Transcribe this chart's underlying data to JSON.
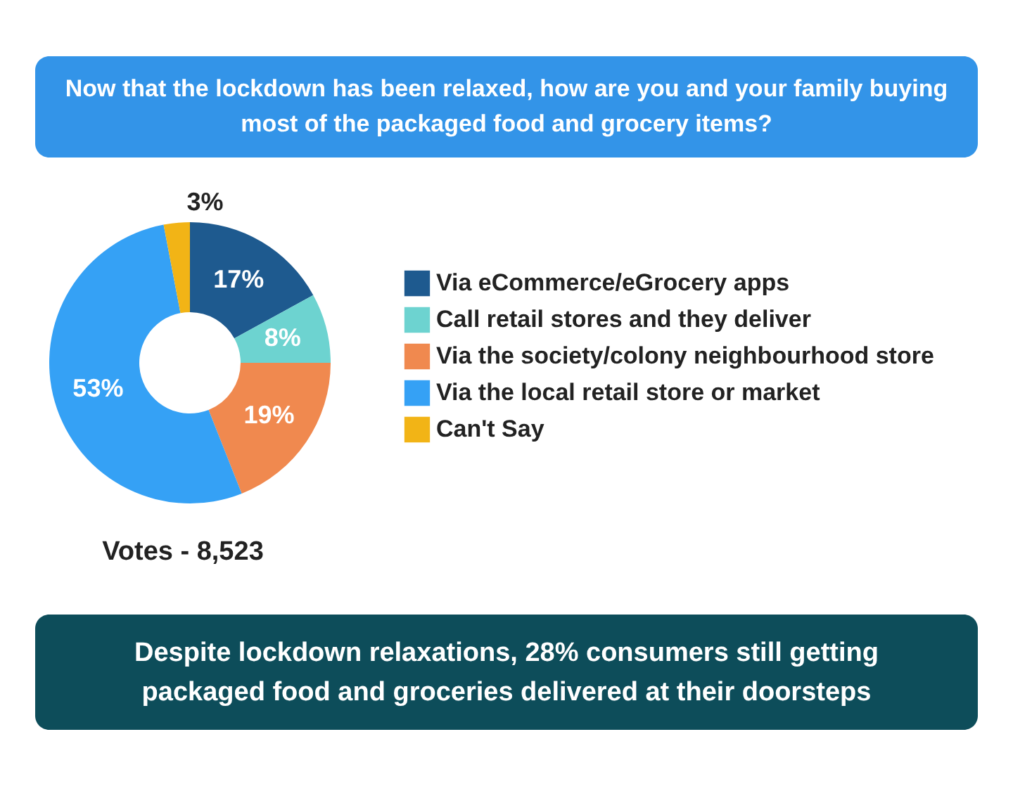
{
  "chart_data": {
    "type": "donut",
    "title": "Now that the lockdown has been relaxed, how are you and your family buying most of the packaged food and grocery items?",
    "categories": [
      "Via eCommerce/eGrocery apps",
      "Call retail stores and they deliver",
      "Via the society/colony neighbourhood store",
      "Via the local retail store or market",
      "Can't Say"
    ],
    "values": [
      17,
      8,
      19,
      53,
      3
    ],
    "colors": [
      "#1e5a8f",
      "#6dd3d0",
      "#f0894f",
      "#35a1f5",
      "#f2b416"
    ],
    "value_labels": [
      "17%",
      "8%",
      "19%",
      "53%",
      "3%"
    ],
    "legend": "right",
    "annotations": [
      "Votes - 8,523",
      "Despite lockdown relaxations, 28% consumers still getting packaged food and groceries delivered at their doorsteps"
    ]
  }
}
